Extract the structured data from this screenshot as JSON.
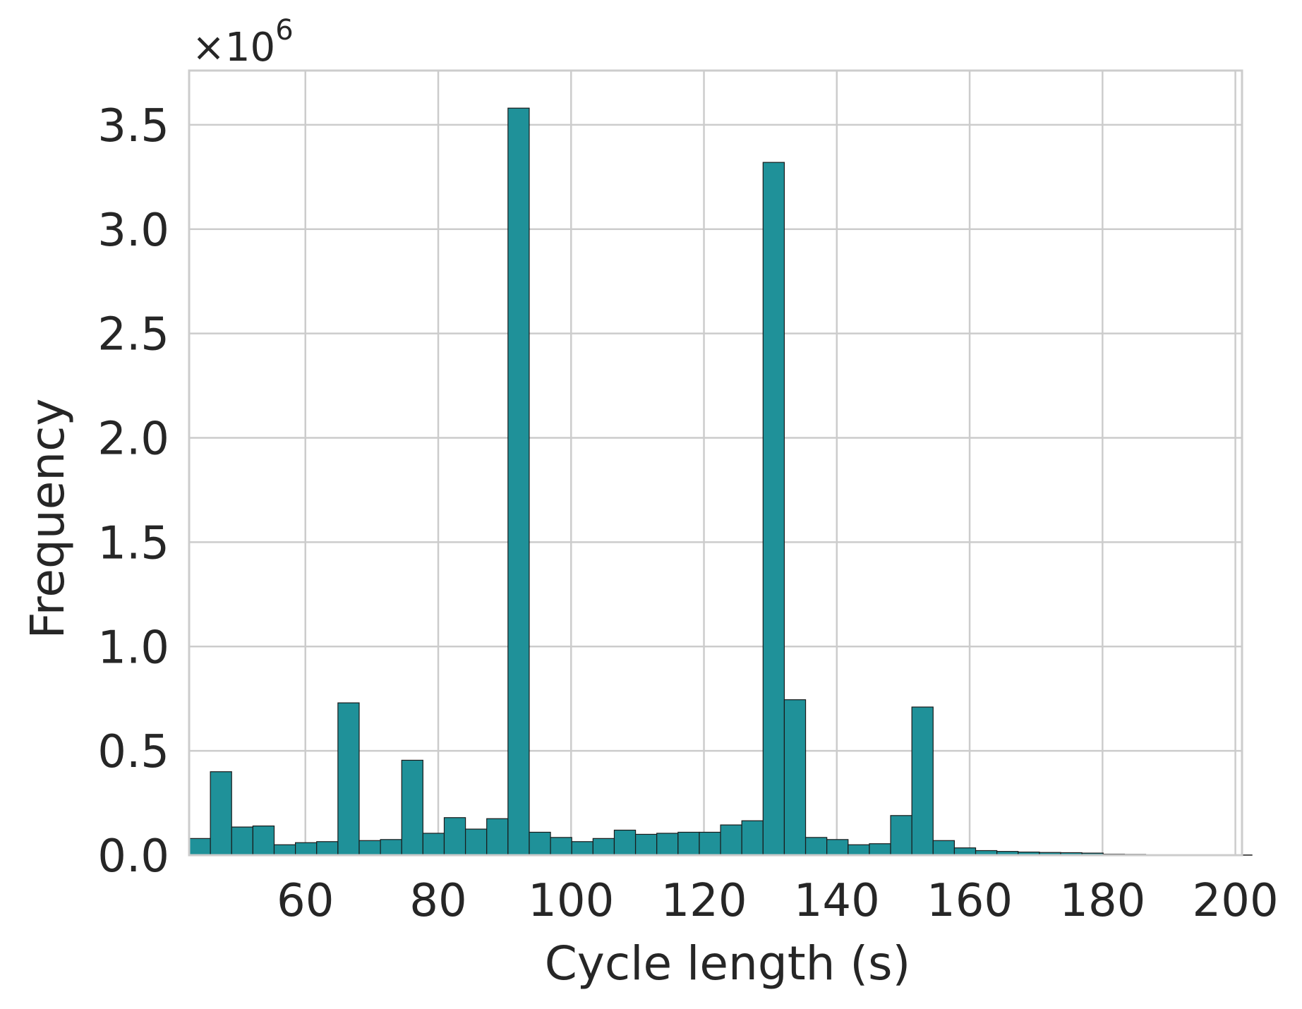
{
  "chart_data": {
    "type": "bar",
    "xlabel": "Cycle length (s)",
    "ylabel": "Frequency",
    "y_scale_label": "×10",
    "y_scale_exponent": "6",
    "xlim": [
      42.5,
      201
    ],
    "ylim": [
      0,
      3.76
    ],
    "x_ticks": [
      60,
      80,
      100,
      120,
      140,
      160,
      180,
      200
    ],
    "x_tick_labels": [
      "60",
      "80",
      "100",
      "120",
      "140",
      "160",
      "180",
      "200"
    ],
    "y_ticks": [
      0,
      0.5,
      1.0,
      1.5,
      2.0,
      2.5,
      3.0,
      3.5
    ],
    "y_tick_labels": [
      "0.0",
      "0.5",
      "1.0",
      "1.5",
      "2.0",
      "2.5",
      "3.0",
      "3.5"
    ],
    "grid": true,
    "bar_color": "#1f9199",
    "bin_start": 42.5,
    "bin_width": 3.2,
    "values": [
      0.08,
      0.4,
      0.135,
      0.14,
      0.05,
      0.06,
      0.065,
      0.73,
      0.07,
      0.075,
      0.455,
      0.105,
      0.18,
      0.125,
      0.175,
      3.58,
      0.11,
      0.085,
      0.065,
      0.08,
      0.12,
      0.1,
      0.105,
      0.11,
      0.11,
      0.145,
      0.165,
      3.32,
      0.745,
      0.085,
      0.075,
      0.05,
      0.055,
      0.19,
      0.71,
      0.07,
      0.035,
      0.022,
      0.018,
      0.015,
      0.013,
      0.012,
      0.01,
      0.005,
      0.004,
      0.003,
      0.002,
      0.002,
      0.001,
      0.001
    ]
  }
}
